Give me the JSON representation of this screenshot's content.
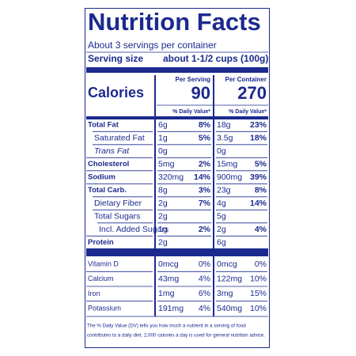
{
  "title": "Nutrition Facts",
  "servings": "About 3 servings per container",
  "serving_size": {
    "label": "Serving size",
    "value": "about 1-1/2 cups (100g)"
  },
  "calories": {
    "label": "Calories",
    "per_serving": {
      "header": "Per Serving",
      "value": "90"
    },
    "per_container": {
      "header": "Per Container",
      "value": "270"
    }
  },
  "daily_value_headers": [
    "% Daily Value*",
    "% Daily Value*"
  ],
  "nutrients": [
    [
      "Total Fat",
      "6g",
      "8%",
      "18g",
      "23%"
    ],
    [
      "Saturated Fat",
      "1g",
      "5%",
      "3.5g",
      "18%"
    ],
    [
      "Trans Fat",
      "0g",
      null,
      "0g",
      null
    ],
    [
      "Cholesterol",
      "5mg",
      "2%",
      "15mg",
      "5%"
    ],
    [
      "Sodium",
      "320mg",
      "14%",
      "900mg",
      "39%"
    ],
    [
      "Total Carb.",
      "8g",
      "3%",
      "23g",
      "8%"
    ],
    [
      "Dietary Fiber",
      "2g",
      "7%",
      "4g",
      "14%"
    ],
    [
      "Total Sugars",
      "2g",
      null,
      "5g",
      null
    ],
    [
      "Incl. Added Sugars",
      "1g",
      "2%",
      "2g",
      "4%"
    ],
    [
      "Protein",
      "2g",
      null,
      "6g",
      null
    ]
  ],
  "vitamins": [
    [
      "Vitamin D",
      "0mcg",
      "0%",
      "0mcg",
      "0%"
    ],
    [
      "Calcium",
      "43mg",
      "4%",
      "122mg",
      "10%"
    ],
    [
      "Iron",
      "1mg",
      "6%",
      "3mg",
      "15%"
    ],
    [
      "Potassium",
      "191mg",
      "4%",
      "540mg",
      "10%"
    ]
  ],
  "footnote": [
    "The % Daily Value (DV) tells you how much a nutrient in a serving of food",
    "contributes to a daily diet. 2,000 calories a day is used for general nutrition advice."
  ]
}
